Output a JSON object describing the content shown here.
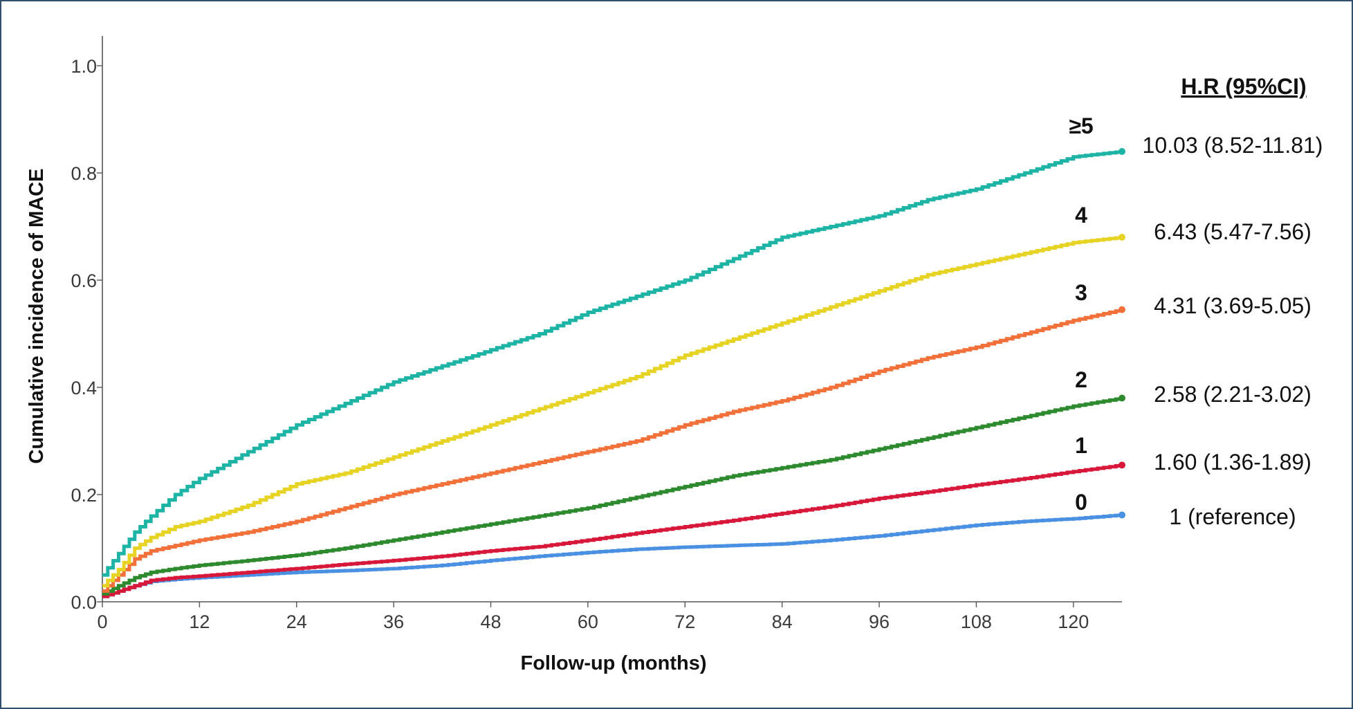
{
  "chart_data": {
    "type": "line",
    "xlabel": "Follow-up (months)",
    "ylabel": "Cumulative incidence of MACE",
    "xlim": [
      0,
      126
    ],
    "ylim": [
      0,
      1.0
    ],
    "x_ticks": [
      "0",
      "12",
      "24",
      "36",
      "48",
      "60",
      "72",
      "84",
      "96",
      "108",
      "120"
    ],
    "y_ticks": [
      "0.0",
      "0.2",
      "0.4",
      "0.6",
      "0.8",
      "1.0"
    ],
    "hr_title": "H.R (95%CI)",
    "grid": false,
    "legend": "none",
    "series": [
      {
        "name": "≥5",
        "hr": "10.03 (8.52-11.81)",
        "color": "#1db3a5",
        "x": [
          0,
          2,
          4,
          6,
          9,
          12,
          18,
          24,
          30,
          36,
          42,
          48,
          54,
          60,
          66,
          72,
          78,
          84,
          90,
          96,
          102,
          108,
          114,
          120,
          126
        ],
        "y": [
          0.05,
          0.09,
          0.13,
          0.16,
          0.2,
          0.23,
          0.28,
          0.33,
          0.37,
          0.41,
          0.44,
          0.47,
          0.5,
          0.54,
          0.57,
          0.6,
          0.64,
          0.68,
          0.7,
          0.72,
          0.75,
          0.77,
          0.8,
          0.83,
          0.84
        ]
      },
      {
        "name": "4",
        "hr": "6.43 (5.47-7.56)",
        "color": "#e6d324",
        "x": [
          0,
          2,
          4,
          6,
          9,
          12,
          18,
          24,
          30,
          36,
          42,
          48,
          54,
          60,
          66,
          72,
          78,
          84,
          90,
          96,
          102,
          108,
          114,
          120,
          126
        ],
        "y": [
          0.03,
          0.06,
          0.1,
          0.12,
          0.14,
          0.15,
          0.18,
          0.22,
          0.24,
          0.27,
          0.3,
          0.33,
          0.36,
          0.39,
          0.42,
          0.46,
          0.49,
          0.52,
          0.55,
          0.58,
          0.61,
          0.63,
          0.65,
          0.67,
          0.68
        ]
      },
      {
        "name": "3",
        "hr": "4.31 (3.69-5.05)",
        "color": "#f2703a",
        "x": [
          0,
          2,
          4,
          6,
          9,
          12,
          18,
          24,
          30,
          36,
          42,
          48,
          54,
          60,
          66,
          72,
          78,
          84,
          90,
          96,
          102,
          108,
          114,
          120,
          126
        ],
        "y": [
          0.02,
          0.05,
          0.08,
          0.095,
          0.105,
          0.115,
          0.13,
          0.15,
          0.175,
          0.2,
          0.22,
          0.24,
          0.26,
          0.28,
          0.3,
          0.33,
          0.355,
          0.375,
          0.4,
          0.43,
          0.455,
          0.475,
          0.5,
          0.525,
          0.545
        ]
      },
      {
        "name": "2",
        "hr": "2.58 (2.21-3.02)",
        "color": "#2e8a2e",
        "x": [
          0,
          2,
          4,
          6,
          9,
          12,
          18,
          24,
          30,
          36,
          42,
          48,
          54,
          60,
          66,
          72,
          78,
          84,
          90,
          96,
          102,
          108,
          114,
          120,
          126
        ],
        "y": [
          0.015,
          0.03,
          0.045,
          0.055,
          0.062,
          0.068,
          0.077,
          0.087,
          0.1,
          0.115,
          0.13,
          0.145,
          0.16,
          0.175,
          0.195,
          0.215,
          0.235,
          0.25,
          0.265,
          0.285,
          0.305,
          0.325,
          0.345,
          0.365,
          0.38
        ]
      },
      {
        "name": "1",
        "hr": "1.60 (1.36-1.89)",
        "color": "#d8183a",
        "x": [
          0,
          2,
          4,
          6,
          9,
          12,
          18,
          24,
          30,
          36,
          42,
          48,
          54,
          60,
          66,
          72,
          78,
          84,
          90,
          96,
          102,
          108,
          114,
          120,
          126
        ],
        "y": [
          0.01,
          0.02,
          0.03,
          0.04,
          0.045,
          0.048,
          0.055,
          0.062,
          0.07,
          0.077,
          0.085,
          0.095,
          0.103,
          0.115,
          0.128,
          0.14,
          0.152,
          0.165,
          0.178,
          0.193,
          0.205,
          0.218,
          0.23,
          0.243,
          0.255
        ]
      },
      {
        "name": "0",
        "hr": "1 (reference)",
        "color": "#4a90e2",
        "x": [
          0,
          2,
          4,
          6,
          9,
          12,
          18,
          24,
          30,
          36,
          42,
          48,
          54,
          60,
          66,
          72,
          78,
          84,
          90,
          96,
          102,
          108,
          114,
          120,
          126
        ],
        "y": [
          0.01,
          0.02,
          0.03,
          0.038,
          0.042,
          0.045,
          0.05,
          0.055,
          0.058,
          0.062,
          0.068,
          0.077,
          0.085,
          0.092,
          0.098,
          0.102,
          0.105,
          0.108,
          0.115,
          0.123,
          0.133,
          0.143,
          0.15,
          0.155,
          0.162
        ]
      }
    ]
  }
}
